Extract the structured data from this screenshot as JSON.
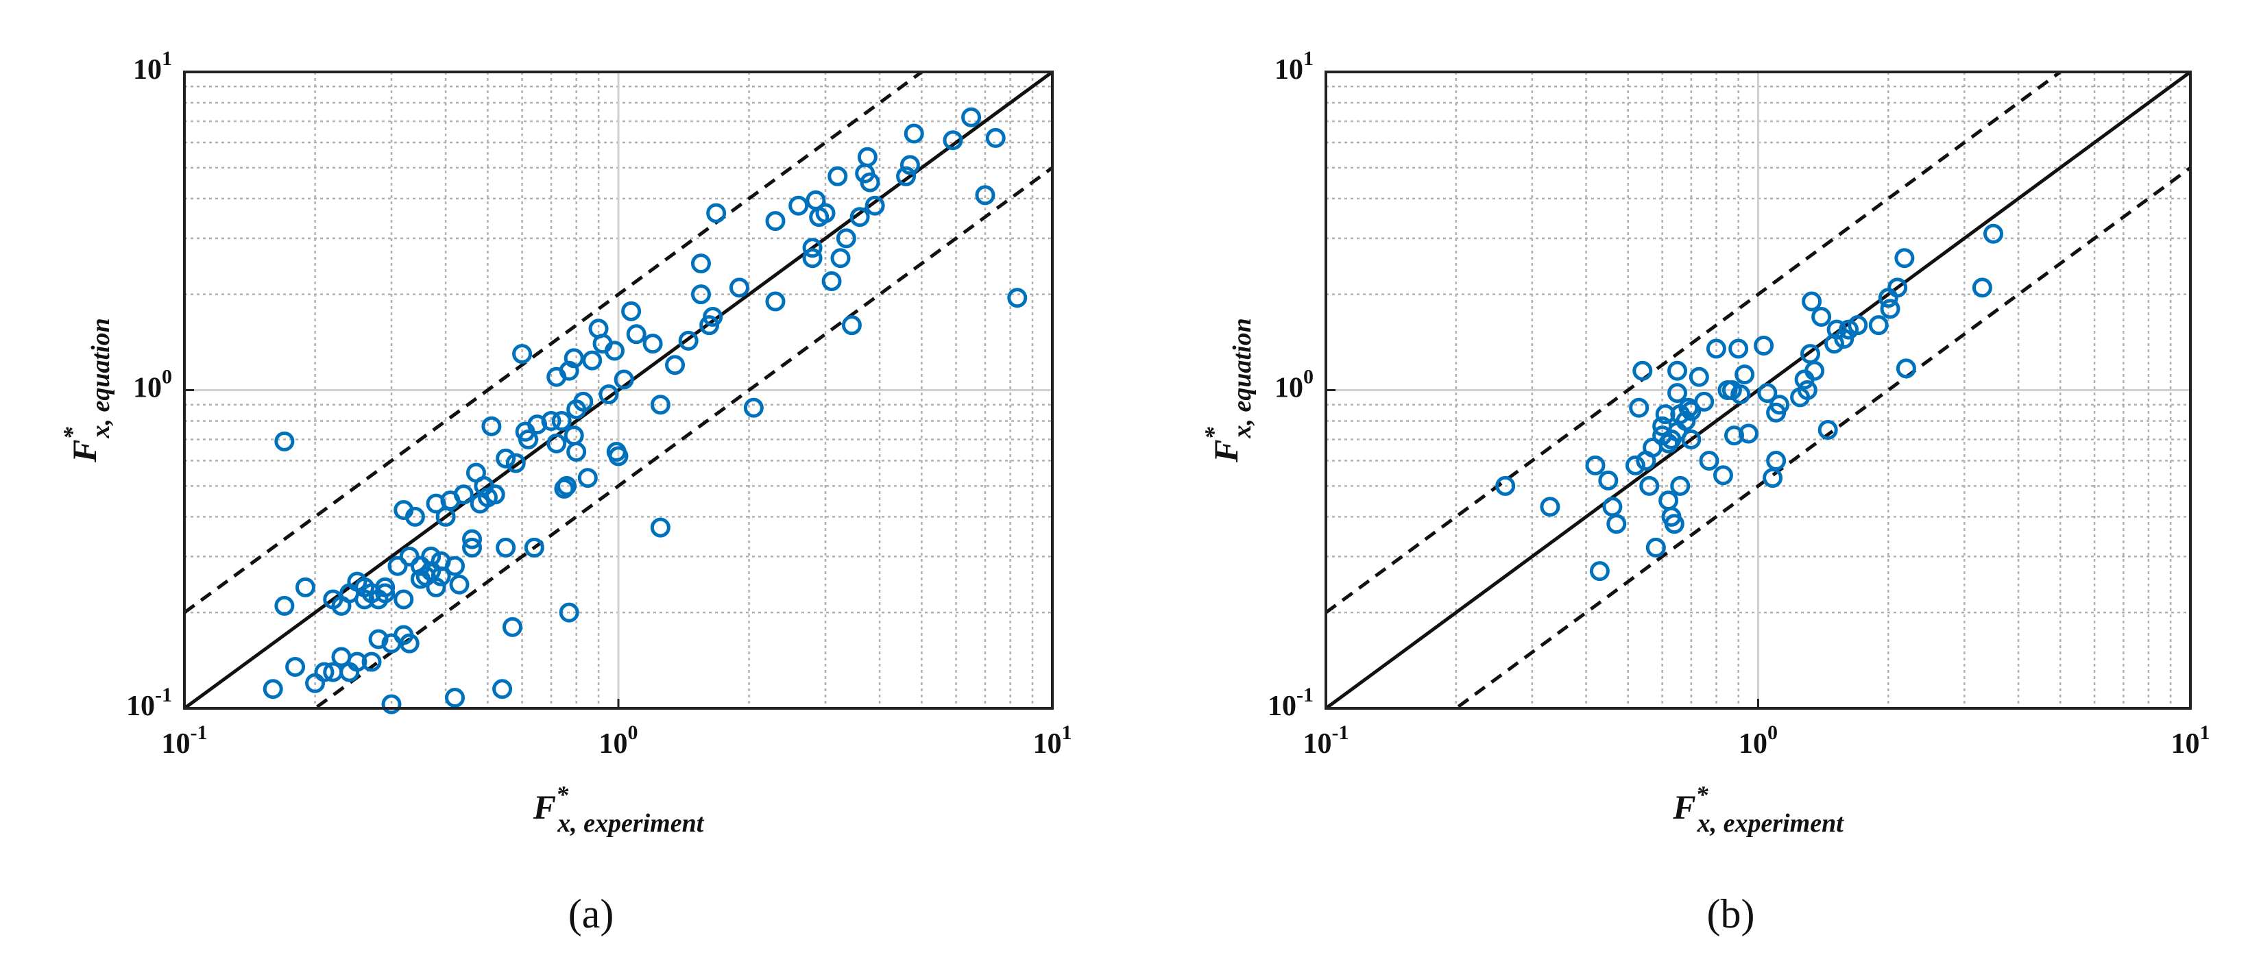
{
  "chart_data": [
    {
      "type": "scatter",
      "panel_label": "(a)",
      "xlabel": {
        "main": "F",
        "sup": "*",
        "sub": "x, experiment"
      },
      "ylabel": {
        "main": "F",
        "sup": "*",
        "sub": "x, equation"
      },
      "color": "#0072bd",
      "log_x": true,
      "log_y": true,
      "grid": true,
      "xlim": [
        0.1,
        10
      ],
      "ylim": [
        0.1,
        10
      ],
      "xticks": [
        {
          "value": 0.1,
          "label": "10",
          "exponent": "-1"
        },
        {
          "value": 1,
          "label": "10",
          "exponent": "0"
        },
        {
          "value": 10,
          "label": "10",
          "exponent": "1"
        }
      ],
      "yticks": [
        {
          "value": 0.1,
          "label": "10",
          "exponent": "-1"
        },
        {
          "value": 1,
          "label": "10",
          "exponent": "0"
        },
        {
          "value": 10,
          "label": "10",
          "exponent": "1"
        }
      ],
      "xminor": [
        0.2,
        0.3,
        0.4,
        0.5,
        0.6,
        0.7,
        0.8,
        0.9,
        2,
        3,
        4,
        5,
        6,
        7,
        8,
        9
      ],
      "yminor": [
        0.2,
        0.3,
        0.4,
        0.5,
        0.6,
        0.7,
        0.8,
        0.9,
        2,
        3,
        4,
        5,
        6,
        7,
        8,
        9
      ],
      "reference_lines": [
        {
          "slope": 1,
          "dashed": false
        },
        {
          "slope": 2,
          "dashed": true
        },
        {
          "slope": 0.5,
          "dashed": true
        }
      ],
      "x": [
        0.17,
        0.16,
        0.17,
        0.18,
        0.19,
        0.2,
        0.21,
        0.22,
        0.22,
        0.23,
        0.23,
        0.24,
        0.24,
        0.25,
        0.25,
        0.26,
        0.26,
        0.27,
        0.27,
        0.28,
        0.28,
        0.29,
        0.29,
        0.3,
        0.3,
        0.31,
        0.32,
        0.32,
        0.32,
        0.33,
        0.33,
        0.34,
        0.35,
        0.35,
        0.36,
        0.37,
        0.37,
        0.38,
        0.38,
        0.39,
        0.39,
        0.4,
        0.41,
        0.42,
        0.42,
        0.43,
        0.44,
        0.46,
        0.46,
        0.47,
        0.48,
        0.49,
        0.5,
        0.51,
        0.52,
        0.54,
        0.55,
        0.55,
        0.57,
        0.58,
        0.6,
        0.61,
        0.62,
        0.64,
        0.65,
        0.7,
        0.72,
        0.72,
        0.74,
        0.75,
        0.76,
        0.77,
        0.77,
        0.79,
        0.79,
        0.8,
        0.8,
        0.83,
        0.85,
        0.87,
        0.9,
        0.92,
        0.95,
        0.98,
        0.99,
        1.0,
        1.03,
        1.07,
        1.1,
        1.2,
        1.25,
        1.25,
        1.35,
        1.45,
        1.55,
        1.55,
        1.62,
        1.65,
        1.68,
        1.9,
        2.05,
        2.3,
        2.3,
        2.6,
        2.8,
        2.8,
        2.85,
        2.9,
        3.0,
        3.1,
        3.2,
        3.25,
        3.35,
        3.45,
        3.6,
        3.7,
        3.75,
        3.8,
        3.9,
        4.6,
        4.7,
        4.8,
        5.9,
        6.5,
        7.0,
        7.4,
        8.3
      ],
      "y": [
        0.69,
        0.115,
        0.21,
        0.135,
        0.24,
        0.12,
        0.13,
        0.22,
        0.13,
        0.21,
        0.145,
        0.23,
        0.13,
        0.25,
        0.14,
        0.22,
        0.24,
        0.23,
        0.14,
        0.22,
        0.165,
        0.24,
        0.23,
        0.103,
        0.16,
        0.28,
        0.22,
        0.17,
        0.42,
        0.3,
        0.16,
        0.4,
        0.28,
        0.255,
        0.26,
        0.3,
        0.27,
        0.24,
        0.44,
        0.29,
        0.26,
        0.4,
        0.45,
        0.28,
        0.108,
        0.245,
        0.47,
        0.34,
        0.32,
        0.55,
        0.44,
        0.5,
        0.46,
        0.77,
        0.47,
        0.115,
        0.61,
        0.32,
        0.18,
        0.59,
        1.3,
        0.74,
        0.7,
        0.32,
        0.78,
        0.8,
        0.68,
        1.1,
        0.8,
        0.49,
        0.5,
        0.2,
        1.15,
        1.26,
        0.72,
        0.64,
        0.87,
        0.92,
        0.53,
        1.24,
        1.56,
        1.4,
        0.97,
        1.33,
        0.64,
        0.62,
        1.08,
        1.77,
        1.5,
        1.4,
        0.9,
        0.37,
        1.2,
        1.43,
        2.0,
        2.5,
        1.6,
        1.7,
        3.6,
        2.1,
        0.88,
        3.4,
        1.9,
        3.8,
        2.8,
        2.6,
        3.95,
        3.5,
        3.6,
        2.2,
        4.7,
        2.6,
        3.0,
        1.6,
        3.5,
        4.8,
        5.4,
        4.5,
        3.8,
        4.7,
        5.1,
        6.4,
        6.1,
        7.2,
        4.1,
        6.2,
        1.95
      ]
    },
    {
      "type": "scatter",
      "panel_label": "(b)",
      "xlabel": {
        "main": "F",
        "sup": "*",
        "sub": "x, experiment"
      },
      "ylabel": {
        "main": "F",
        "sup": "*",
        "sub": "x, equation"
      },
      "color": "#0072bd",
      "log_x": true,
      "log_y": true,
      "grid": true,
      "xlim": [
        0.1,
        10
      ],
      "ylim": [
        0.1,
        10
      ],
      "xticks": [
        {
          "value": 0.1,
          "label": "10",
          "exponent": "-1"
        },
        {
          "value": 1,
          "label": "10",
          "exponent": "0"
        },
        {
          "value": 10,
          "label": "10",
          "exponent": "1"
        }
      ],
      "yticks": [
        {
          "value": 0.1,
          "label": "10",
          "exponent": "-1"
        },
        {
          "value": 1,
          "label": "10",
          "exponent": "0"
        },
        {
          "value": 10,
          "label": "10",
          "exponent": "1"
        }
      ],
      "xminor": [
        0.2,
        0.3,
        0.4,
        0.5,
        0.6,
        0.7,
        0.8,
        0.9,
        2,
        3,
        4,
        5,
        6,
        7,
        8,
        9
      ],
      "yminor": [
        0.2,
        0.3,
        0.4,
        0.5,
        0.6,
        0.7,
        0.8,
        0.9,
        2,
        3,
        4,
        5,
        6,
        7,
        8,
        9
      ],
      "reference_lines": [
        {
          "slope": 1,
          "dashed": false
        },
        {
          "slope": 2,
          "dashed": true
        },
        {
          "slope": 0.5,
          "dashed": true
        }
      ],
      "x": [
        0.26,
        0.33,
        0.42,
        0.43,
        0.45,
        0.46,
        0.47,
        0.52,
        0.53,
        0.54,
        0.55,
        0.56,
        0.57,
        0.58,
        0.6,
        0.6,
        0.61,
        0.62,
        0.62,
        0.63,
        0.63,
        0.64,
        0.65,
        0.65,
        0.65,
        0.66,
        0.66,
        0.68,
        0.69,
        0.7,
        0.7,
        0.73,
        0.75,
        0.77,
        0.8,
        0.83,
        0.85,
        0.87,
        0.88,
        0.9,
        0.91,
        0.93,
        0.95,
        1.03,
        1.05,
        1.08,
        1.1,
        1.1,
        1.12,
        1.25,
        1.28,
        1.3,
        1.32,
        1.33,
        1.35,
        1.4,
        1.45,
        1.5,
        1.52,
        1.58,
        1.62,
        1.7,
        1.9,
        2.0,
        2.02,
        2.1,
        2.18,
        2.2,
        3.3,
        3.5
      ],
      "y": [
        0.5,
        0.43,
        0.58,
        0.27,
        0.52,
        0.43,
        0.38,
        0.58,
        0.88,
        1.15,
        0.6,
        0.5,
        0.66,
        0.32,
        0.72,
        0.77,
        0.84,
        0.45,
        0.68,
        0.7,
        0.4,
        0.38,
        0.98,
        1.15,
        0.74,
        0.84,
        0.5,
        0.8,
        0.88,
        0.86,
        0.7,
        1.1,
        0.92,
        0.6,
        1.35,
        0.54,
        1.0,
        1.0,
        0.72,
        1.35,
        0.97,
        1.12,
        0.73,
        1.38,
        0.98,
        0.53,
        0.85,
        0.6,
        0.9,
        0.95,
        1.08,
        1.0,
        1.3,
        1.9,
        1.15,
        1.7,
        0.75,
        1.4,
        1.55,
        1.45,
        1.55,
        1.6,
        1.6,
        1.95,
        1.8,
        2.1,
        2.6,
        1.17,
        2.1,
        3.1
      ]
    }
  ]
}
